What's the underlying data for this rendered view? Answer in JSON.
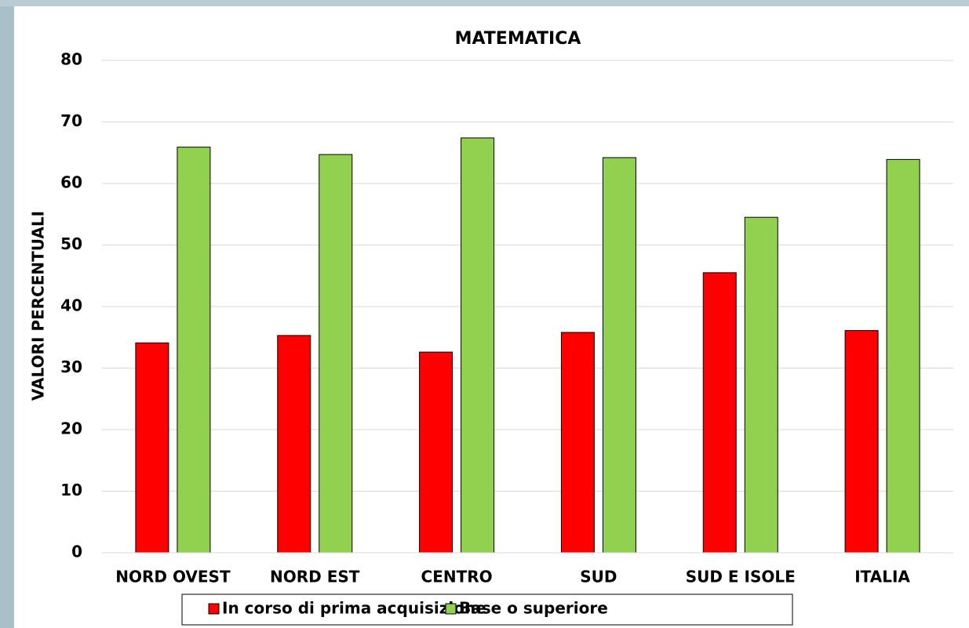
{
  "chart_data": {
    "type": "bar",
    "title": "MATEMATICA",
    "y_label": "VALORI PERCENTUALI",
    "categories": [
      "NORD OVEST",
      "NORD EST",
      "CENTRO",
      "SUD",
      "SUD E ISOLE",
      "ITALIA"
    ],
    "series": [
      {
        "name": "In corso di prima acquisizione",
        "color": "#ff0000",
        "values": [
          34.1,
          35.3,
          32.6,
          35.8,
          45.5,
          36.1
        ]
      },
      {
        "name": "Base o superiore",
        "color": "#92d050",
        "values": [
          65.9,
          64.7,
          67.4,
          64.2,
          54.5,
          63.9
        ]
      }
    ],
    "ylim": [
      0,
      80
    ],
    "yticks": [
      0,
      10,
      20,
      30,
      40,
      50,
      60,
      70,
      80
    ],
    "grid": true,
    "legend": "bottom"
  }
}
